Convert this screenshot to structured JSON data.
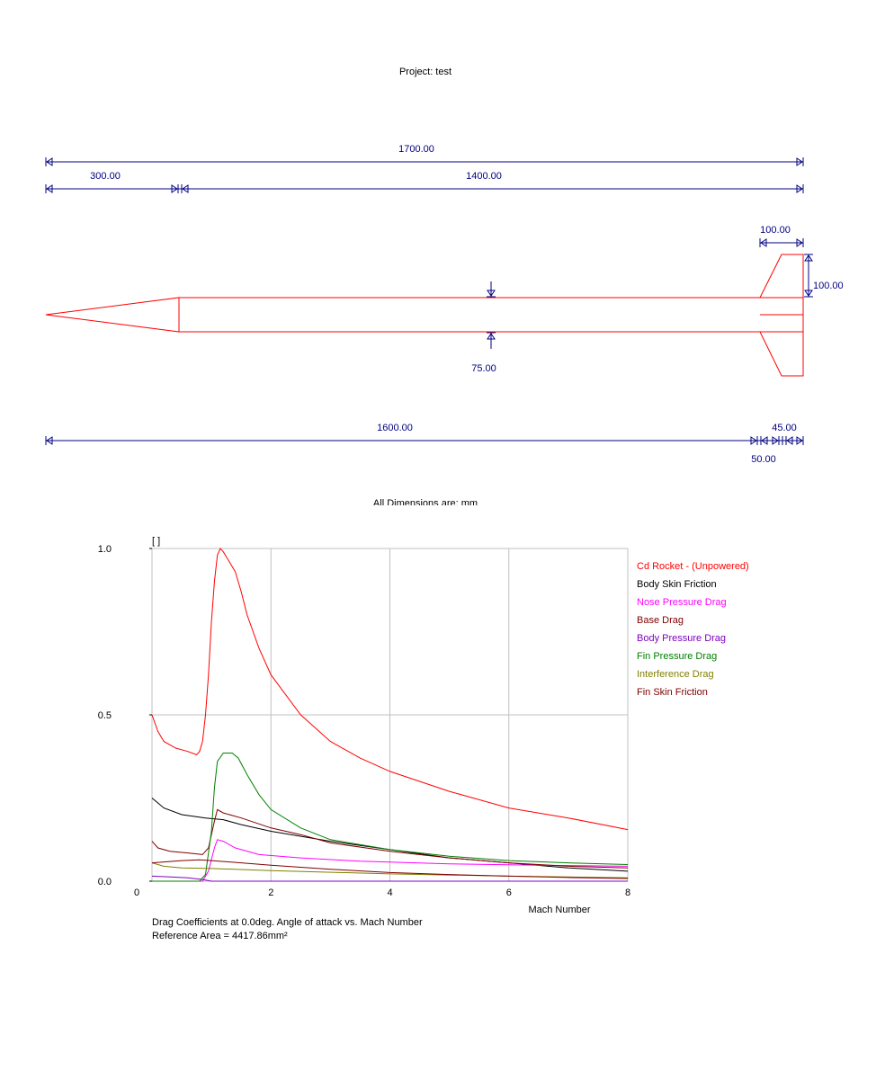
{
  "project": {
    "title": "Project: test"
  },
  "drawing": {
    "dimensions": {
      "overall_length": "1700.00",
      "nose_length": "300.00",
      "body_length": "1400.00",
      "fin_root_chord": "100.00",
      "fin_span": "100.00",
      "body_diameter": "75.00",
      "fin_position": "1600.00",
      "fin_tip_chord": "45.00",
      "fin_sweep": "50.00"
    },
    "units_note": "All Dimensions are: mm",
    "colors": {
      "rocket": "#ff0000",
      "dimension": "#000080"
    }
  },
  "chart_data": {
    "type": "line",
    "y_unit_label": "[ ]",
    "xlabel": "Mach Number",
    "ylabel": "",
    "xlim": [
      0,
      8
    ],
    "ylim": [
      0,
      1.0
    ],
    "x_ticks": [
      "0",
      "2",
      "4",
      "6",
      "8"
    ],
    "y_ticks": [
      "0.0",
      "0.5",
      "1.0"
    ],
    "grid": true,
    "legend_position": "right",
    "series": [
      {
        "name": "Cd Rocket - (Unpowered)",
        "color": "#ff0000",
        "points": [
          [
            0,
            0.5
          ],
          [
            0.1,
            0.45
          ],
          [
            0.2,
            0.42
          ],
          [
            0.4,
            0.4
          ],
          [
            0.6,
            0.39
          ],
          [
            0.75,
            0.38
          ],
          [
            0.8,
            0.39
          ],
          [
            0.85,
            0.42
          ],
          [
            0.9,
            0.5
          ],
          [
            0.95,
            0.62
          ],
          [
            1.0,
            0.78
          ],
          [
            1.05,
            0.9
          ],
          [
            1.1,
            0.98
          ],
          [
            1.15,
            1.0
          ],
          [
            1.2,
            0.99
          ],
          [
            1.3,
            0.96
          ],
          [
            1.4,
            0.93
          ],
          [
            1.5,
            0.87
          ],
          [
            1.6,
            0.8
          ],
          [
            1.8,
            0.7
          ],
          [
            2.0,
            0.62
          ],
          [
            2.5,
            0.5
          ],
          [
            3.0,
            0.42
          ],
          [
            3.5,
            0.37
          ],
          [
            4.0,
            0.33
          ],
          [
            5.0,
            0.27
          ],
          [
            6.0,
            0.22
          ],
          [
            7.0,
            0.19
          ],
          [
            8.0,
            0.155
          ]
        ]
      },
      {
        "name": "Body Skin Friction",
        "color": "#000000",
        "points": [
          [
            0,
            0.25
          ],
          [
            0.2,
            0.22
          ],
          [
            0.5,
            0.2
          ],
          [
            0.9,
            0.19
          ],
          [
            1.2,
            0.185
          ],
          [
            1.5,
            0.17
          ],
          [
            2.0,
            0.15
          ],
          [
            3.0,
            0.12
          ],
          [
            4.0,
            0.095
          ],
          [
            5.0,
            0.07
          ],
          [
            6.0,
            0.055
          ],
          [
            7.0,
            0.04
          ],
          [
            8.0,
            0.03
          ]
        ]
      },
      {
        "name": "Nose Pressure Drag",
        "color": "#ff00ff",
        "points": [
          [
            0,
            0.0
          ],
          [
            0.85,
            0.0
          ],
          [
            0.95,
            0.03
          ],
          [
            1.05,
            0.1
          ],
          [
            1.1,
            0.125
          ],
          [
            1.2,
            0.12
          ],
          [
            1.4,
            0.1
          ],
          [
            1.8,
            0.08
          ],
          [
            2.5,
            0.07
          ],
          [
            3.5,
            0.06
          ],
          [
            5.0,
            0.052
          ],
          [
            6.5,
            0.048
          ],
          [
            8.0,
            0.045
          ]
        ]
      },
      {
        "name": "Base Drag",
        "color": "#800000",
        "points": [
          [
            0,
            0.12
          ],
          [
            0.1,
            0.1
          ],
          [
            0.3,
            0.09
          ],
          [
            0.6,
            0.085
          ],
          [
            0.85,
            0.08
          ],
          [
            0.95,
            0.1
          ],
          [
            1.05,
            0.18
          ],
          [
            1.1,
            0.215
          ],
          [
            1.2,
            0.205
          ],
          [
            1.5,
            0.19
          ],
          [
            2.0,
            0.16
          ],
          [
            2.5,
            0.14
          ],
          [
            3.0,
            0.115
          ],
          [
            4.0,
            0.09
          ],
          [
            5.0,
            0.07
          ],
          [
            6.0,
            0.055
          ],
          [
            7.0,
            0.045
          ],
          [
            8.0,
            0.04
          ]
        ]
      },
      {
        "name": "Body Pressure Drag",
        "color": "#8000c0",
        "points": [
          [
            0,
            0.015
          ],
          [
            0.3,
            0.013
          ],
          [
            0.6,
            0.01
          ],
          [
            0.85,
            0.005
          ],
          [
            1.0,
            0.0
          ],
          [
            8.0,
            0.0
          ]
        ]
      },
      {
        "name": "Fin Pressure Drag",
        "color": "#008000",
        "points": [
          [
            0,
            0.0
          ],
          [
            0.8,
            0.0
          ],
          [
            0.9,
            0.02
          ],
          [
            1.0,
            0.15
          ],
          [
            1.05,
            0.28
          ],
          [
            1.1,
            0.36
          ],
          [
            1.2,
            0.385
          ],
          [
            1.35,
            0.385
          ],
          [
            1.45,
            0.37
          ],
          [
            1.6,
            0.32
          ],
          [
            1.8,
            0.26
          ],
          [
            2.0,
            0.215
          ],
          [
            2.5,
            0.16
          ],
          [
            3.0,
            0.125
          ],
          [
            4.0,
            0.095
          ],
          [
            5.0,
            0.075
          ],
          [
            6.0,
            0.062
          ],
          [
            7.0,
            0.055
          ],
          [
            8.0,
            0.05
          ]
        ]
      },
      {
        "name": "Interference Drag",
        "color": "#808000",
        "points": [
          [
            0,
            0.055
          ],
          [
            0.2,
            0.045
          ],
          [
            0.5,
            0.04
          ],
          [
            1.0,
            0.038
          ],
          [
            2.0,
            0.032
          ],
          [
            4.0,
            0.022
          ],
          [
            6.0,
            0.015
          ],
          [
            8.0,
            0.01
          ]
        ]
      },
      {
        "name": "Fin Skin Friction",
        "color": "#800000",
        "points": [
          [
            0,
            0.055
          ],
          [
            0.5,
            0.062
          ],
          [
            0.8,
            0.064
          ],
          [
            1.0,
            0.062
          ],
          [
            1.5,
            0.055
          ],
          [
            2.0,
            0.048
          ],
          [
            3.0,
            0.036
          ],
          [
            4.0,
            0.026
          ],
          [
            5.0,
            0.02
          ],
          [
            6.0,
            0.015
          ],
          [
            7.0,
            0.011
          ],
          [
            8.0,
            0.008
          ]
        ]
      }
    ],
    "caption_line1": "Drag Coefficients at 0.0deg. Angle of attack vs. Mach Number",
    "caption_line2": "Reference Area =  4417.86mm²"
  }
}
